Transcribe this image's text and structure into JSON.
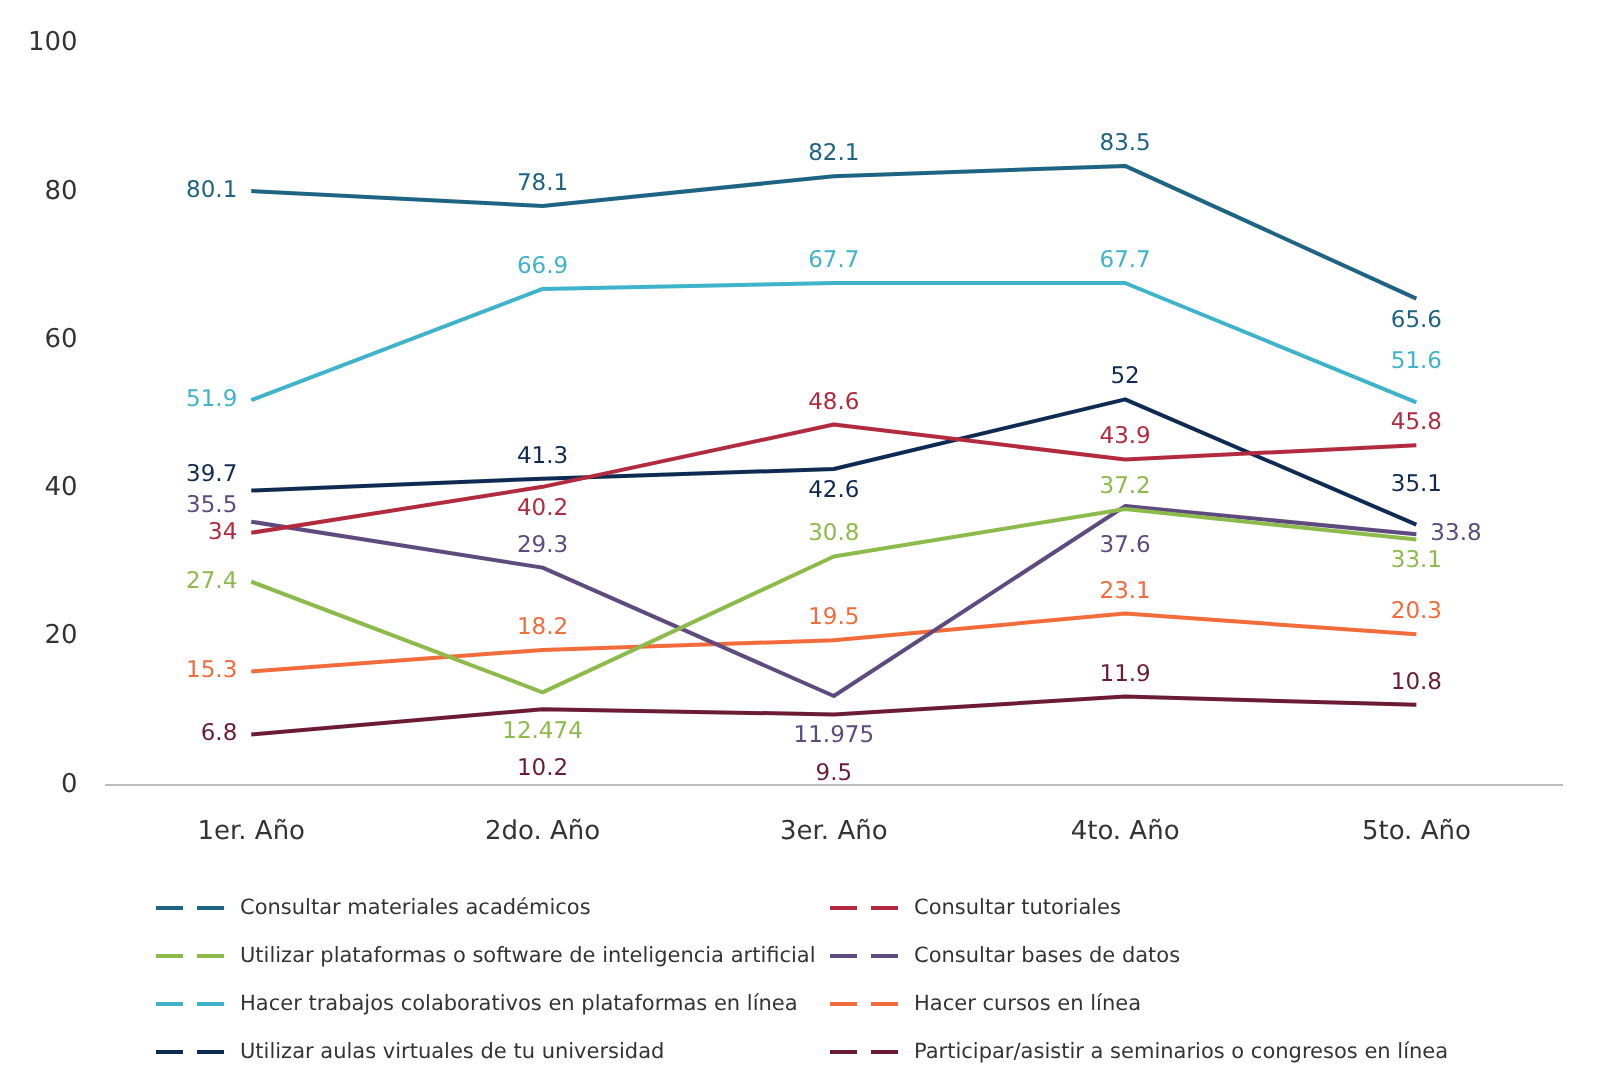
{
  "chart_data": {
    "type": "line",
    "categories": [
      "1er. Año",
      "2do. Año",
      "3er. Año",
      "4to. Año",
      "5to. Año"
    ],
    "ylim": [
      0,
      100
    ],
    "yticks": [
      0,
      20,
      40,
      60,
      80,
      100
    ],
    "grid": false,
    "legend": "bottom",
    "marker": "none",
    "data_labels": true,
    "series": [
      {
        "name": "Consultar materiales académicos",
        "color": "#1d6383",
        "values": [
          80.1,
          78.1,
          82.1,
          83.5,
          65.6
        ]
      },
      {
        "name": "Consultar tutoriales",
        "color": "#b12a3e",
        "values": [
          34,
          40.2,
          48.6,
          43.9,
          45.8
        ]
      },
      {
        "name": "Utilizar plataformas o software de inteligencia artificial",
        "color": "#8cbb4c",
        "values": [
          27.4,
          12.474,
          30.8,
          37.2,
          33.1
        ]
      },
      {
        "name": "Consultar bases de datos",
        "color": "#5e4a7e",
        "values": [
          35.5,
          29.3,
          11.975,
          37.6,
          33.8
        ]
      },
      {
        "name": "Hacer trabajos colaborativos en plataformas en línea",
        "color": "#3fb3cb",
        "values": [
          51.9,
          66.9,
          67.7,
          67.7,
          51.6
        ]
      },
      {
        "name": "Hacer cursos en línea",
        "color": "#f26b3a",
        "values": [
          15.3,
          18.2,
          19.5,
          23.1,
          20.3
        ]
      },
      {
        "name": "Utilizar aulas virtuales de tu universidad",
        "color": "#0e2a52",
        "values": [
          39.7,
          41.3,
          42.6,
          52,
          35.1
        ]
      },
      {
        "name": "Participar/asistir a seminarios o congresos en línea",
        "color": "#6b1b32",
        "values": [
          6.8,
          10.2,
          9.5,
          11.9,
          10.8
        ]
      }
    ]
  }
}
